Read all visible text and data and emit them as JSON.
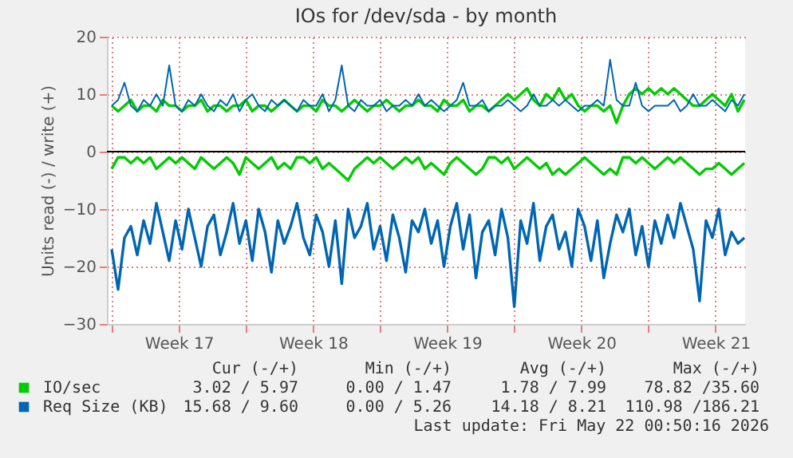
{
  "chart_data": {
    "type": "line",
    "title": "IOs for /dev/sda - by month",
    "ylabel": "Units read (-) / write (+)",
    "x": [
      "2026-04-19T00:00",
      "2026-04-19T08:00",
      "2026-04-19T16:00",
      "2026-04-20T00:00",
      "2026-04-20T08:00",
      "2026-04-20T16:00",
      "2026-04-21T00:00",
      "2026-04-21T08:00",
      "2026-04-21T16:00",
      "2026-04-22T00:00",
      "2026-04-22T08:00",
      "2026-04-22T16:00",
      "2026-04-23T00:00",
      "2026-04-23T08:00",
      "2026-04-23T16:00",
      "2026-04-24T00:00",
      "2026-04-24T08:00",
      "2026-04-24T16:00",
      "2026-04-25T00:00",
      "2026-04-25T08:00",
      "2026-04-25T16:00",
      "2026-04-26T00:00",
      "2026-04-26T08:00",
      "2026-04-26T16:00",
      "2026-04-27T00:00",
      "2026-04-27T08:00",
      "2026-04-27T16:00",
      "2026-04-28T00:00",
      "2026-04-28T08:00",
      "2026-04-28T16:00",
      "2026-04-29T00:00",
      "2026-04-29T08:00",
      "2026-04-29T16:00",
      "2026-04-30T00:00",
      "2026-04-30T08:00",
      "2026-04-30T16:00",
      "2026-05-01T00:00",
      "2026-05-01T08:00",
      "2026-05-01T16:00",
      "2026-05-02T00:00",
      "2026-05-02T08:00",
      "2026-05-02T16:00",
      "2026-05-03T00:00",
      "2026-05-03T08:00",
      "2026-05-03T16:00",
      "2026-05-04T00:00",
      "2026-05-04T08:00",
      "2026-05-04T16:00",
      "2026-05-05T00:00",
      "2026-05-05T08:00",
      "2026-05-05T16:00",
      "2026-05-06T00:00",
      "2026-05-06T08:00",
      "2026-05-06T16:00",
      "2026-05-07T00:00",
      "2026-05-07T08:00",
      "2026-05-07T16:00",
      "2026-05-08T00:00",
      "2026-05-08T08:00",
      "2026-05-08T16:00",
      "2026-05-09T00:00",
      "2026-05-09T08:00",
      "2026-05-09T16:00",
      "2026-05-10T00:00",
      "2026-05-10T08:00",
      "2026-05-10T16:00",
      "2026-05-11T00:00",
      "2026-05-11T08:00",
      "2026-05-11T16:00",
      "2026-05-12T00:00",
      "2026-05-12T08:00",
      "2026-05-12T16:00",
      "2026-05-13T00:00",
      "2026-05-13T08:00",
      "2026-05-13T16:00",
      "2026-05-14T00:00",
      "2026-05-14T08:00",
      "2026-05-14T16:00",
      "2026-05-15T00:00",
      "2026-05-15T08:00",
      "2026-05-15T16:00",
      "2026-05-16T00:00",
      "2026-05-16T08:00",
      "2026-05-16T16:00",
      "2026-05-17T00:00",
      "2026-05-17T08:00",
      "2026-05-17T16:00",
      "2026-05-18T00:00",
      "2026-05-18T08:00",
      "2026-05-18T16:00",
      "2026-05-19T00:00",
      "2026-05-19T08:00",
      "2026-05-19T16:00",
      "2026-05-20T00:00",
      "2026-05-20T08:00",
      "2026-05-20T16:00",
      "2026-05-21T00:00",
      "2026-05-21T08:00",
      "2026-05-21T16:00",
      "2026-05-22T00:00"
    ],
    "series": [
      {
        "color": "#00cc00",
        "values": [
          -3,
          -1,
          -1,
          -2,
          -1,
          -2,
          -1,
          -3,
          -2,
          -1,
          -2,
          -1,
          -2,
          -3,
          -1,
          -2,
          -3,
          -2,
          -1,
          -2,
          -4,
          -1,
          -2,
          -3,
          -2,
          -1,
          -3,
          -2,
          -3,
          -1,
          -1,
          -2,
          -1,
          -3,
          -2,
          -3,
          -4,
          -5,
          -3,
          -2,
          -1,
          -2,
          -1,
          -2,
          -3,
          -2,
          -1,
          -2,
          -1,
          -3,
          -2,
          -3,
          -4,
          -2,
          -1,
          -2,
          -3,
          -4,
          -3,
          -1,
          -1,
          -2,
          -1,
          -3,
          -2,
          -1,
          -2,
          -3,
          -2,
          -4,
          -3,
          -4,
          -3,
          -2,
          -1,
          -2,
          -3,
          -4,
          -3,
          -4,
          -1,
          -1,
          -2,
          -1,
          -2,
          -3,
          -2,
          -1,
          -2,
          -1,
          -2,
          -3,
          -4,
          -3,
          -3,
          -2,
          -3,
          -4,
          -3,
          -2
        ]
      },
      {
        "name": "IO/sec",
        "color": "#00cc00",
        "values": [
          8,
          7,
          8,
          9,
          7,
          8,
          8,
          7,
          9,
          8,
          8,
          7,
          8,
          8,
          9,
          7,
          8,
          8,
          7,
          8,
          8,
          9,
          7,
          8,
          8,
          7,
          8,
          9,
          8,
          7,
          8,
          8,
          7,
          9,
          8,
          8,
          7,
          8,
          9,
          8,
          7,
          8,
          8,
          9,
          8,
          7,
          8,
          8,
          9,
          8,
          8,
          7,
          9,
          8,
          8,
          9,
          7,
          8,
          8,
          7,
          8,
          9,
          10,
          9,
          10,
          11,
          9,
          8,
          10,
          9,
          11,
          9,
          10,
          8,
          7,
          8,
          8,
          7,
          8,
          5,
          8,
          10,
          11,
          10,
          11,
          10,
          11,
          10,
          11,
          10,
          9,
          8,
          8,
          9,
          10,
          9,
          8,
          10,
          7,
          9
        ]
      },
      {
        "color": "#0066b3",
        "values": [
          -17,
          -24,
          -15,
          -13,
          -18,
          -12,
          -16,
          -9,
          -14,
          -19,
          -12,
          -17,
          -10,
          -15,
          -20,
          -13,
          -11,
          -18,
          -14,
          -9,
          -16,
          -12,
          -19,
          -10,
          -14,
          -21,
          -12,
          -16,
          -13,
          -9,
          -15,
          -18,
          -11,
          -14,
          -20,
          -12,
          -23,
          -10,
          -15,
          -13,
          -9,
          -17,
          -13,
          -19,
          -11,
          -15,
          -21,
          -12,
          -14,
          -10,
          -16,
          -12,
          -20,
          -13,
          -9,
          -17,
          -11,
          -22,
          -14,
          -12,
          -18,
          -10,
          -15,
          -27,
          -12,
          -16,
          -9,
          -19,
          -13,
          -11,
          -17,
          -14,
          -20,
          -10,
          -13,
          -19,
          -12,
          -22,
          -16,
          -11,
          -14,
          -10,
          -18,
          -13,
          -20,
          -12,
          -16,
          -11,
          -15,
          -9,
          -13,
          -17,
          -26,
          -12,
          -15,
          -10,
          -18,
          -14,
          -16,
          -15
        ]
      },
      {
        "name": "Req Size (KB)",
        "color": "#0066b3",
        "values": [
          8,
          9,
          12,
          8,
          7,
          9,
          8,
          10,
          8,
          15,
          8,
          7,
          9,
          8,
          10,
          8,
          7,
          9,
          8,
          10,
          7,
          9,
          10,
          8,
          7,
          9,
          8,
          9,
          8,
          7,
          9,
          8,
          8,
          10,
          7,
          9,
          15,
          8,
          7,
          9,
          8,
          8,
          9,
          7,
          8,
          8,
          9,
          8,
          10,
          8,
          9,
          8,
          7,
          8,
          9,
          12,
          8,
          8,
          9,
          7,
          8,
          8,
          9,
          8,
          7,
          8,
          10,
          8,
          8,
          9,
          8,
          9,
          8,
          7,
          8,
          8,
          9,
          8,
          16,
          9,
          8,
          8,
          12,
          8,
          7,
          8,
          8,
          8,
          9,
          7,
          8,
          10,
          8,
          8,
          9,
          8,
          7,
          9,
          8,
          10
        ]
      }
    ],
    "xlim": [
      "2026-04-18T18:00",
      "2026-05-22T01:00"
    ],
    "xticks": [
      {
        "value": "2026-04-19T00:00",
        "label": null
      },
      {
        "value": "2026-04-22T12:00",
        "label": "Week 17"
      },
      {
        "value": "2026-04-26T00:00",
        "label": null
      },
      {
        "value": "2026-04-29T12:00",
        "label": "Week 18"
      },
      {
        "value": "2026-05-03T00:00",
        "label": null
      },
      {
        "value": "2026-05-06T12:00",
        "label": "Week 19"
      },
      {
        "value": "2026-05-10T00:00",
        "label": null
      },
      {
        "value": "2026-05-13T12:00",
        "label": "Week 20"
      },
      {
        "value": "2026-05-17T00:00",
        "label": null
      },
      {
        "value": "2026-05-20T12:00",
        "label": "Week 21"
      }
    ],
    "ylim": [
      -30,
      20
    ],
    "yticks": [
      -30,
      -20,
      -10,
      0,
      10,
      20
    ],
    "grid": true,
    "legend": "bottom left",
    "ref_lines": [
      {
        "axis": "y",
        "value": 0,
        "color": "#000000"
      }
    ],
    "annotations": [
      "Cur (-/+)",
      "Min (-/+)",
      "Avg (-/+)",
      "Max (-/+)",
      "3.02 / 5.97",
      "0.00 / 1.47",
      "1.78 / 7.99",
      "78.82 /35.60",
      "15.68 / 9.60",
      "0.00 / 5.26",
      "14.18 / 8.21",
      "110.98 /186.21",
      "Last update: Fri May 22 00:50:16 2026"
    ]
  }
}
